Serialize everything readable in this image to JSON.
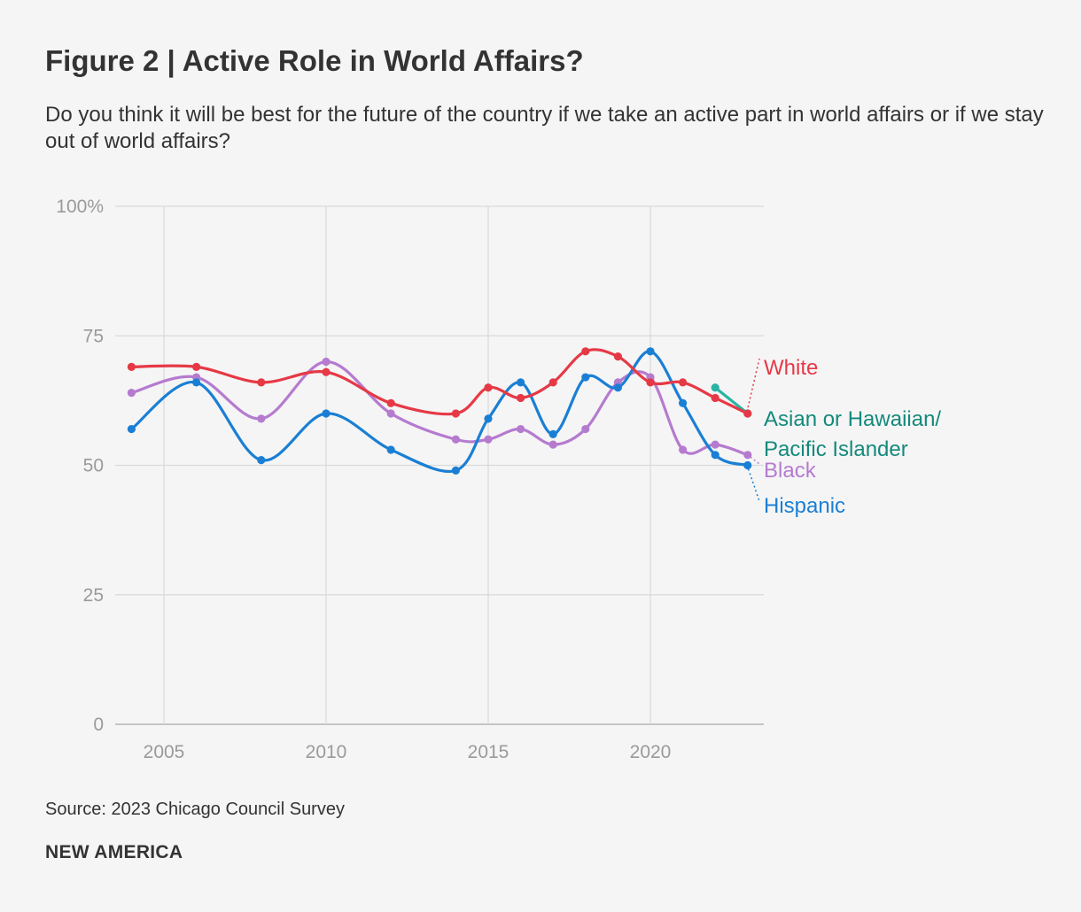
{
  "title": "Figure 2 | Active Role in World Affairs?",
  "subtitle": "Do you think it will be best for the future of the country if we take an active part in world affairs or if we stay out of world affairs?",
  "source": "Source: 2023 Chicago Council Survey",
  "brand": "NEW AMERICA",
  "chart_data": {
    "type": "line",
    "title": "Active Role in World Affairs?",
    "xlabel": "",
    "ylabel": "",
    "xlim": [
      2003.5,
      2023.5
    ],
    "ylim": [
      0,
      100
    ],
    "x_ticks": [
      2005,
      2010,
      2015,
      2020
    ],
    "y_ticks": [
      {
        "value": 0,
        "label": "0"
      },
      {
        "value": 25,
        "label": "25"
      },
      {
        "value": 50,
        "label": "50"
      },
      {
        "value": 75,
        "label": "75"
      },
      {
        "value": 100,
        "label": "100%"
      }
    ],
    "grid": true,
    "series": [
      {
        "name": "White",
        "color": "#e63946",
        "x": [
          2004,
          2006,
          2008,
          2010,
          2012,
          2014,
          2015,
          2016,
          2017,
          2018,
          2019,
          2020,
          2021,
          2022,
          2023
        ],
        "values": [
          69,
          69,
          66,
          68,
          62,
          60,
          65,
          63,
          66,
          72,
          71,
          66,
          66,
          63,
          60
        ]
      },
      {
        "name": "Black",
        "color": "#b57bcf",
        "x": [
          2004,
          2006,
          2008,
          2010,
          2012,
          2014,
          2015,
          2016,
          2017,
          2018,
          2019,
          2020,
          2021,
          2022,
          2023
        ],
        "values": [
          64,
          67,
          59,
          70,
          60,
          55,
          55,
          57,
          54,
          57,
          66,
          67,
          53,
          54,
          52
        ]
      },
      {
        "name": "Hispanic",
        "color": "#1a7fd4",
        "x": [
          2004,
          2006,
          2008,
          2010,
          2012,
          2014,
          2015,
          2016,
          2017,
          2018,
          2019,
          2020,
          2021,
          2022,
          2023
        ],
        "values": [
          57,
          66,
          51,
          60,
          53,
          49,
          59,
          66,
          56,
          67,
          65,
          72,
          62,
          52,
          50
        ]
      },
      {
        "name": "Asian or Hawaiian/ Pacific Islander",
        "label_lines": [
          "Asian or Hawaiian/",
          "Pacific Islander"
        ],
        "color": "#2bb3a3",
        "label_color": "#14897c",
        "x": [
          2022,
          2023
        ],
        "values": [
          65,
          60
        ]
      }
    ]
  }
}
